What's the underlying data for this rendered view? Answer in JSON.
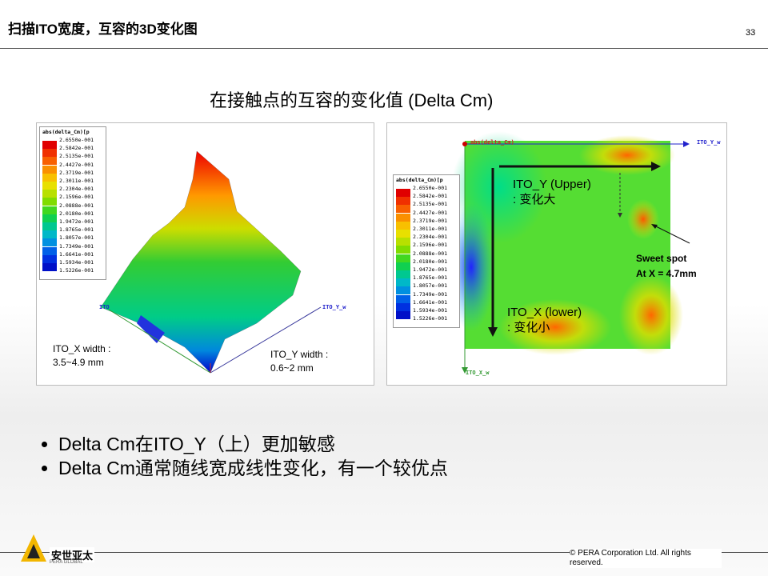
{
  "header": {
    "title": "扫描ITO宽度，互容的3D变化图",
    "page_number": "33"
  },
  "subtitle": "在接触点的互容的变化值 (Delta Cm)",
  "left_panel": {
    "legend": {
      "title": "abs(delta_Cm)[p",
      "labels": [
        "2.6550e-001",
        "2.5842e-001",
        "2.5135e-001",
        "2.4427e-001",
        "2.3719e-001",
        "2.3011e-001",
        "2.2304e-001",
        "2.1596e-001",
        "2.0888e-001",
        "2.0180e-001",
        "1.9472e-001",
        "1.8765e-001",
        "1.8057e-001",
        "1.7349e-001",
        "1.6641e-001",
        "1.5934e-001",
        "1.5226e-001"
      ]
    },
    "axis_x": "ITO",
    "axis_y": "ITO_Y_w",
    "note_x": [
      "ITO_X width :",
      "3.5~4.9 mm"
    ],
    "note_y": [
      "ITO_Y width :",
      "0.6~2 mm"
    ]
  },
  "right_panel": {
    "legend": {
      "title": "abs(delta_Cm)[p",
      "labels": [
        "2.6550e-001",
        "2.5842e-001",
        "2.5135e-001",
        "2.4427e-001",
        "2.3719e-001",
        "2.3011e-001",
        "2.2304e-001",
        "2.1596e-001",
        "2.0888e-001",
        "2.0180e-001",
        "1.9472e-001",
        "1.8765e-001",
        "1.8057e-001",
        "1.7349e-001",
        "1.6641e-001",
        "1.5934e-001",
        "1.5226e-001"
      ]
    },
    "origin_label": "abs(delta_Cm)",
    "axis_y": "ITO_Y_w",
    "axis_x": "ITO_X_w",
    "upper": [
      "ITO_Y (Upper)",
      ": 变化大"
    ],
    "sweet": [
      "Sweet spot",
      "At X = 4.7mm"
    ],
    "lower": [
      "ITO_X (lower)",
      ": 变化小"
    ]
  },
  "bullets": [
    "Delta Cm在ITO_Y（上）更加敏感",
    "Delta Cm通常随线宽成线性变化，有一个较优点"
  ],
  "footer": {
    "logo_cn": "安世亚太",
    "logo_en": "PERA GLOBAL",
    "copyright": "© PERA Corporation Ltd. All rights reserved."
  }
}
